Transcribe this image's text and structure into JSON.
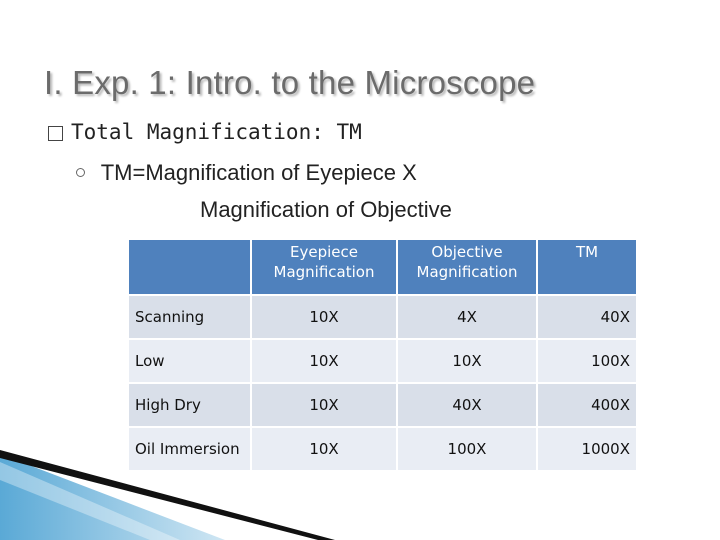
{
  "slide": {
    "title": "I.  Exp. 1:  Intro. to the Microscope",
    "bullet1": "Total Magnification:  TM",
    "bullet2_line1": "TM=Magnification of Eyepiece   X",
    "bullet2_line2": "Magnification of Objective"
  },
  "table": {
    "headers": [
      "",
      "Eyepiece Magnification",
      "Objective Magnification",
      "TM"
    ],
    "rows": [
      {
        "label": "Scanning",
        "eyepiece": "10X",
        "objective": "4X",
        "tm": "40X"
      },
      {
        "label": "Low",
        "eyepiece": "10X",
        "objective": "10X",
        "tm": "100X"
      },
      {
        "label": "High Dry",
        "eyepiece": "10X",
        "objective": "40X",
        "tm": "400X"
      },
      {
        "label": "Oil Immersion",
        "eyepiece": "10X",
        "objective": "100X",
        "tm": "1000X"
      }
    ]
  },
  "colors": {
    "header_bg": "#4f81bd",
    "row_bg": "#d9dfe9",
    "row_alt_bg": "#e9edf4",
    "accent_blue": "#5aa9d6"
  }
}
